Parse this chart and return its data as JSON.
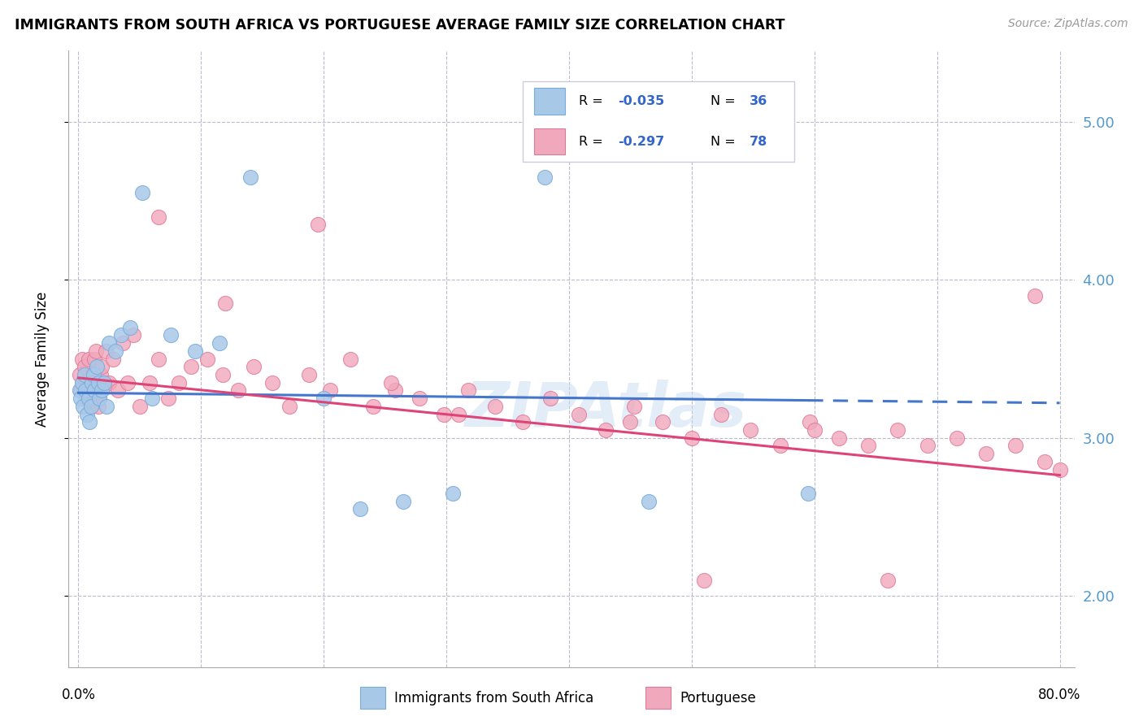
{
  "title": "IMMIGRANTS FROM SOUTH AFRICA VS PORTUGUESE AVERAGE FAMILY SIZE CORRELATION CHART",
  "source": "Source: ZipAtlas.com",
  "ylabel": "Average Family Size",
  "ylim": [
    1.55,
    5.45
  ],
  "yticks": [
    2.0,
    3.0,
    4.0,
    5.0
  ],
  "xlim": [
    -0.008,
    0.812
  ],
  "xtick_positions": [
    0.0,
    0.1,
    0.2,
    0.3,
    0.4,
    0.5,
    0.6,
    0.7,
    0.8
  ],
  "blue_color": "#A8C8E8",
  "blue_edge_color": "#7AABDD",
  "pink_color": "#F0A8BC",
  "pink_edge_color": "#E07898",
  "blue_line_color": "#4477CC",
  "pink_line_color": "#DD4477",
  "watermark_color": "#C8DCF0",
  "legend_r_color": "#3366CC",
  "legend_n_color": "#3366CC",
  "right_axis_color": "#5599CC",
  "blue_x": [
    0.001,
    0.002,
    0.003,
    0.004,
    0.005,
    0.006,
    0.007,
    0.008,
    0.009,
    0.01,
    0.011,
    0.012,
    0.013,
    0.015,
    0.016,
    0.017,
    0.019,
    0.021,
    0.023,
    0.025,
    0.03,
    0.035,
    0.042,
    0.052,
    0.06,
    0.075,
    0.095,
    0.115,
    0.14,
    0.2,
    0.23,
    0.265,
    0.305,
    0.38,
    0.465,
    0.595
  ],
  "blue_y": [
    3.3,
    3.25,
    3.35,
    3.2,
    3.4,
    3.3,
    3.15,
    3.25,
    3.1,
    3.2,
    3.35,
    3.4,
    3.3,
    3.45,
    3.35,
    3.25,
    3.3,
    3.35,
    3.2,
    3.6,
    3.55,
    3.65,
    3.7,
    4.55,
    3.25,
    3.65,
    3.55,
    3.6,
    4.65,
    3.25,
    2.55,
    2.6,
    2.65,
    4.65,
    2.6,
    2.65
  ],
  "pink_x": [
    0.001,
    0.002,
    0.003,
    0.004,
    0.005,
    0.006,
    0.007,
    0.008,
    0.009,
    0.01,
    0.011,
    0.012,
    0.013,
    0.014,
    0.015,
    0.016,
    0.017,
    0.018,
    0.019,
    0.02,
    0.022,
    0.025,
    0.028,
    0.032,
    0.036,
    0.04,
    0.045,
    0.05,
    0.058,
    0.065,
    0.073,
    0.082,
    0.092,
    0.105,
    0.118,
    0.13,
    0.143,
    0.158,
    0.172,
    0.188,
    0.205,
    0.222,
    0.24,
    0.258,
    0.278,
    0.298,
    0.318,
    0.34,
    0.362,
    0.385,
    0.408,
    0.43,
    0.453,
    0.476,
    0.5,
    0.524,
    0.548,
    0.572,
    0.596,
    0.62,
    0.644,
    0.668,
    0.692,
    0.716,
    0.74,
    0.764,
    0.788,
    0.8,
    0.065,
    0.12,
    0.195,
    0.255,
    0.31,
    0.45,
    0.51,
    0.6,
    0.66,
    0.78
  ],
  "pink_y": [
    3.4,
    3.3,
    3.5,
    3.35,
    3.45,
    3.35,
    3.25,
    3.5,
    3.3,
    3.2,
    3.4,
    3.25,
    3.5,
    3.55,
    3.35,
    3.2,
    3.25,
    3.4,
    3.45,
    3.35,
    3.55,
    3.35,
    3.5,
    3.3,
    3.6,
    3.35,
    3.65,
    3.2,
    3.35,
    3.5,
    3.25,
    3.35,
    3.45,
    3.5,
    3.4,
    3.3,
    3.45,
    3.35,
    3.2,
    3.4,
    3.3,
    3.5,
    3.2,
    3.3,
    3.25,
    3.15,
    3.3,
    3.2,
    3.1,
    3.25,
    3.15,
    3.05,
    3.2,
    3.1,
    3.0,
    3.15,
    3.05,
    2.95,
    3.1,
    3.0,
    2.95,
    3.05,
    2.95,
    3.0,
    2.9,
    2.95,
    2.85,
    2.8,
    4.4,
    3.85,
    4.35,
    3.35,
    3.15,
    3.1,
    2.1,
    3.05,
    2.1,
    3.9
  ]
}
